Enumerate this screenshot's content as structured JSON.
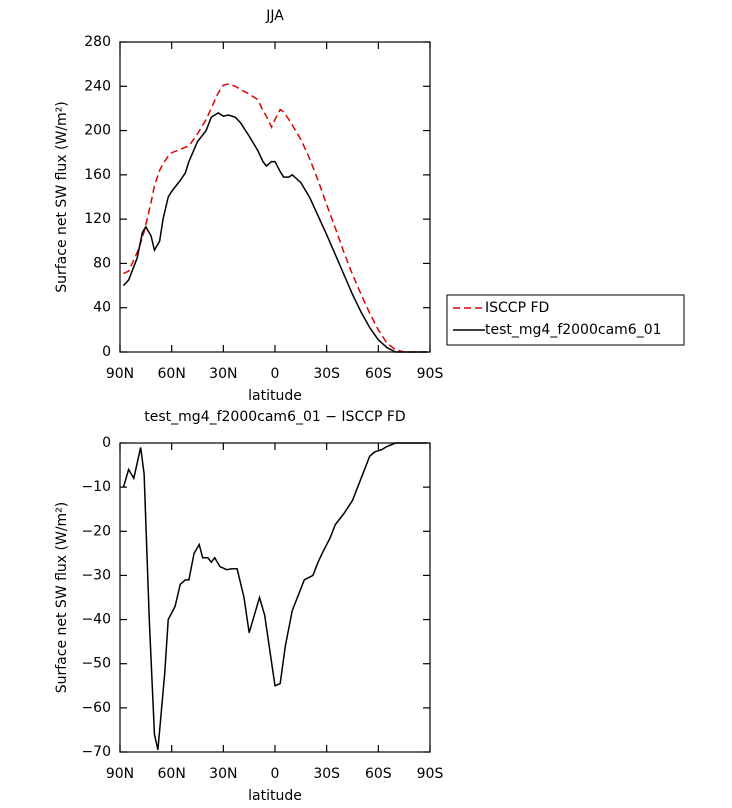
{
  "chart_data": [
    {
      "type": "line",
      "title": "JJA",
      "xlabel": "latitude",
      "ylabel": "Surface net SW flux (W/m²)",
      "xlim": [
        90,
        -90
      ],
      "ylim": [
        0,
        280
      ],
      "xticks": [
        {
          "value": 90,
          "label": "90N"
        },
        {
          "value": 60,
          "label": "60N"
        },
        {
          "value": 30,
          "label": "30N"
        },
        {
          "value": 0,
          "label": "0"
        },
        {
          "value": -30,
          "label": "30S"
        },
        {
          "value": -60,
          "label": "60S"
        },
        {
          "value": -90,
          "label": "90S"
        }
      ],
      "yticks": [
        0,
        40,
        80,
        120,
        160,
        200,
        240,
        280
      ],
      "legend": "right",
      "x": [
        88,
        85,
        80,
        77,
        75,
        72,
        70,
        67,
        65,
        62,
        60,
        55,
        52,
        50,
        45,
        40,
        37,
        33,
        30,
        27,
        23,
        20,
        15,
        10,
        7,
        5,
        2,
        0,
        -3,
        -5,
        -8,
        -10,
        -15,
        -20,
        -25,
        -30,
        -35,
        -40,
        -45,
        -50,
        -55,
        -60,
        -65,
        -70,
        -75,
        -80,
        -88
      ],
      "series": [
        {
          "name": "ISCCP FD",
          "color": "#e00000",
          "linestyle": "dashed",
          "values": [
            71,
            73,
            90,
            103,
            115,
            135,
            150,
            164,
            170,
            177,
            180,
            183,
            185,
            186,
            197,
            210,
            220,
            234,
            241,
            242,
            240,
            237,
            233,
            228,
            218,
            213,
            203,
            210,
            219,
            217,
            210,
            205,
            192,
            175,
            155,
            133,
            112,
            90,
            70,
            52,
            35,
            20,
            8,
            2,
            0,
            0,
            0
          ]
        },
        {
          "name": "test_mg4_f2000cam6_01",
          "color": "#000000",
          "linestyle": "solid",
          "values": [
            60,
            65,
            85,
            108,
            113,
            105,
            92,
            100,
            120,
            140,
            145,
            155,
            162,
            172,
            190,
            200,
            212,
            216,
            213,
            214,
            212,
            207,
            195,
            182,
            172,
            168,
            172,
            172,
            163,
            158,
            158,
            160,
            153,
            140,
            123,
            106,
            88,
            70,
            52,
            36,
            22,
            11,
            4,
            0,
            0,
            0,
            0
          ]
        }
      ]
    },
    {
      "type": "line",
      "title": "test_mg4_f2000cam6_01 − ISCCP FD",
      "xlabel": "latitude",
      "ylabel": "Surface net SW flux (W/m²)",
      "xlim": [
        90,
        -90
      ],
      "ylim": [
        -70,
        0
      ],
      "xticks": [
        {
          "value": 90,
          "label": "90N"
        },
        {
          "value": 60,
          "label": "60N"
        },
        {
          "value": 30,
          "label": "30N"
        },
        {
          "value": 0,
          "label": "0"
        },
        {
          "value": -30,
          "label": "30S"
        },
        {
          "value": -60,
          "label": "60S"
        },
        {
          "value": -90,
          "label": "90S"
        }
      ],
      "yticks": [
        {
          "value": 0,
          "label": "0"
        },
        {
          "value": -10,
          "label": "−10"
        },
        {
          "value": -20,
          "label": "−20"
        },
        {
          "value": -30,
          "label": "−30"
        },
        {
          "value": -40,
          "label": "−40"
        },
        {
          "value": -50,
          "label": "−50"
        },
        {
          "value": -60,
          "label": "−60"
        },
        {
          "value": -70,
          "label": "−70"
        }
      ],
      "x": [
        88,
        85,
        82,
        78,
        76,
        73,
        70,
        68,
        64,
        62,
        58,
        55,
        52,
        50,
        47,
        44,
        42,
        39,
        37,
        35,
        32,
        28,
        25,
        22,
        18,
        15,
        12,
        9,
        6,
        3,
        0,
        -3,
        -6,
        -10,
        -13,
        -17,
        -22,
        -25,
        -28,
        -32,
        -35,
        -40,
        -45,
        -50,
        -55,
        -58,
        -62,
        -65,
        -70,
        -80,
        -88
      ],
      "series": [
        {
          "color": "#000000",
          "linestyle": "solid",
          "values": [
            -10,
            -6,
            -8,
            -1,
            -7,
            -40,
            -66,
            -69.5,
            -52,
            -40,
            -37,
            -32,
            -31,
            -31,
            -25,
            -23,
            -26,
            -26,
            -27,
            -26,
            -28,
            -28.7,
            -28.5,
            -28.5,
            -35,
            -43,
            -39,
            -35,
            -39,
            -47,
            -55,
            -54.5,
            -46,
            -38,
            -35,
            -31,
            -30,
            -27,
            -24.5,
            -21.5,
            -18.5,
            -16,
            -13,
            -8,
            -3,
            -2,
            -1.5,
            -0.8,
            0,
            0,
            0
          ]
        }
      ]
    }
  ]
}
